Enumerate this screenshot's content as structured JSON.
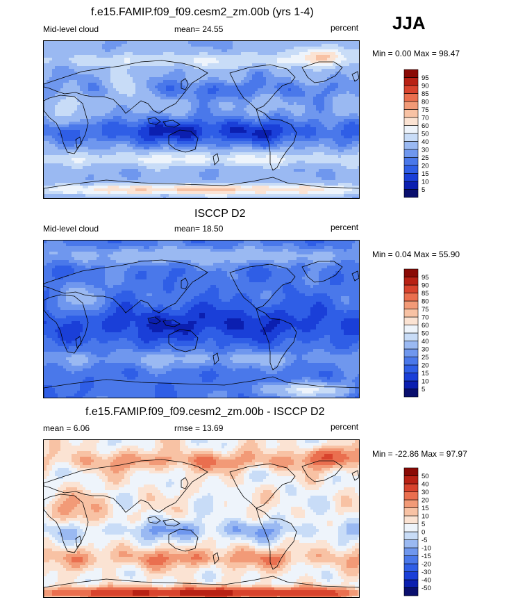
{
  "season": "JJA",
  "panels": [
    {
      "title": "f.e15.FAMIP.f09_f09.cesm2_zm.00b (yrs 1-4)",
      "left_label": "Mid-level cloud",
      "center_label": "mean=  24.55",
      "right_label": "percent",
      "minmax": "Min =   0.00 Max =  98.47",
      "levels": [
        "5",
        "10",
        "15",
        "20",
        "25",
        "30",
        "40",
        "50",
        "60",
        "70",
        "75",
        "80",
        "85",
        "90",
        "95"
      ],
      "colors": [
        "#0a0f6e",
        "#0b1fb0",
        "#1a3fd8",
        "#2f5ee6",
        "#4a78ea",
        "#6f97ee",
        "#9ab9f2",
        "#c8dcf7",
        "#eef4fb",
        "#fbe3d3",
        "#f8c2a4",
        "#f29a77",
        "#ea6f4f",
        "#d8432d",
        "#b82114",
        "#8a0a05"
      ],
      "style": "model"
    },
    {
      "title": "ISCCP D2",
      "left_label": "Mid-level cloud",
      "center_label": "mean=  18.50",
      "right_label": "percent",
      "minmax": "Min =   0.04 Max =  55.90",
      "levels": [
        "5",
        "10",
        "15",
        "20",
        "25",
        "30",
        "40",
        "50",
        "60",
        "70",
        "75",
        "80",
        "85",
        "90",
        "95"
      ],
      "colors": [
        "#0a0f6e",
        "#0b1fb0",
        "#1a3fd8",
        "#2f5ee6",
        "#4a78ea",
        "#6f97ee",
        "#9ab9f2",
        "#c8dcf7",
        "#eef4fb",
        "#fbe3d3",
        "#f8c2a4",
        "#f29a77",
        "#ea6f4f",
        "#d8432d",
        "#b82114",
        "#8a0a05"
      ],
      "style": "obs"
    },
    {
      "title": "f.e15.FAMIP.f09_f09.cesm2_zm.00b - ISCCP D2",
      "left_label": "mean =   6.06",
      "center_label": "rmse =  13.69",
      "right_label": "percent",
      "minmax": "Min = -22.86 Max =  97.97",
      "levels": [
        "-50",
        "-40",
        "-30",
        "-20",
        "-15",
        "-10",
        "-5",
        "0",
        "5",
        "10",
        "15",
        "20",
        "30",
        "40",
        "50"
      ],
      "colors": [
        "#0a0f6e",
        "#0b1fb0",
        "#1a3fd8",
        "#2f5ee6",
        "#4a78ea",
        "#6f97ee",
        "#9ab9f2",
        "#c8dcf7",
        "#eef4fb",
        "#fbe3d3",
        "#f8c2a4",
        "#f29a77",
        "#ea6f4f",
        "#d8432d",
        "#b82114",
        "#8a0a05"
      ],
      "style": "diff"
    }
  ],
  "chart_data": [
    {
      "type": "heatmap",
      "title": "f.e15.FAMIP.f09_f09.cesm2_zm.00b (yrs 1-4)",
      "mean": 24.55,
      "min": 0.0,
      "max": 98.47
    },
    {
      "type": "heatmap",
      "title": "ISCCP D2",
      "mean": 18.5,
      "min": 0.04,
      "max": 55.9
    },
    {
      "type": "heatmap",
      "title": "f.e15.FAMIP.f09_f09.cesm2_zm.00b - ISCCP D2",
      "mean": 6.06,
      "rmse": 13.69,
      "min": -22.86,
      "max": 97.97
    }
  ]
}
